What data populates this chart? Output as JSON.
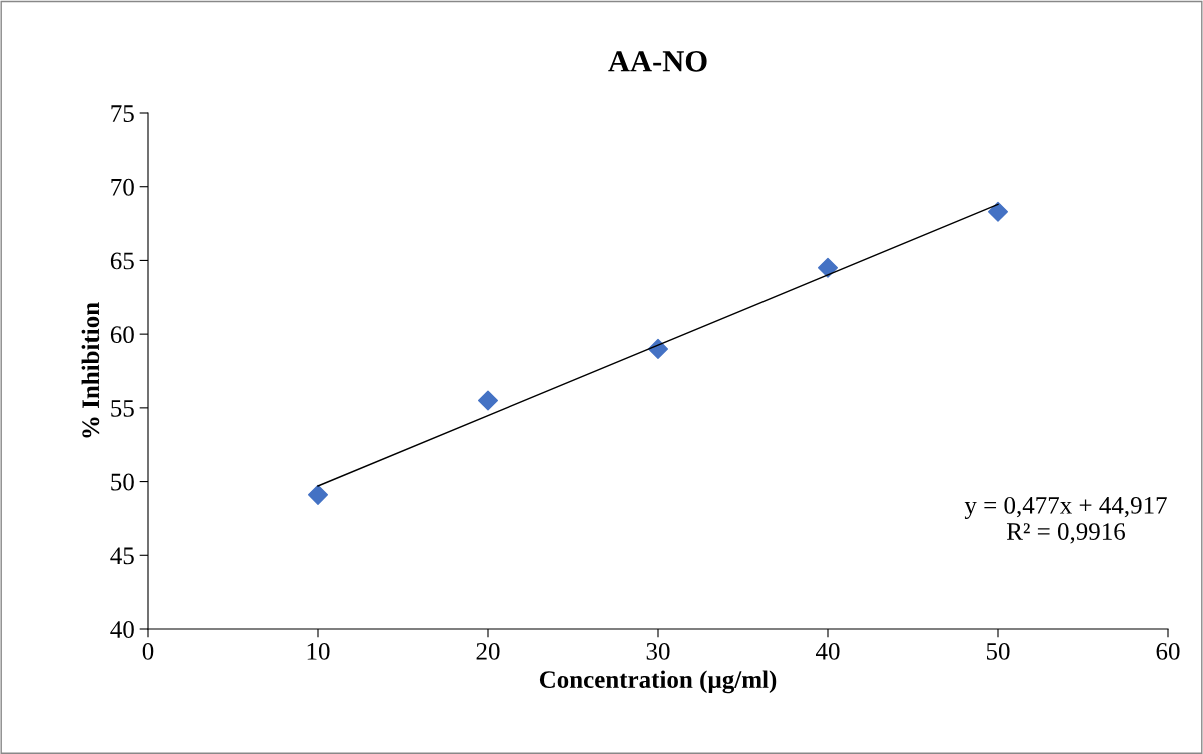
{
  "chart_data": {
    "type": "scatter",
    "title": "AA-NO",
    "xlabel": "Concentration (µg/ml)",
    "ylabel": "% Inhibition",
    "series": [
      {
        "color": "#4472c4",
        "marker": "diamond",
        "x": [
          10,
          20,
          30,
          40,
          50
        ],
        "values": [
          49.1,
          55.5,
          59.0,
          64.5,
          68.3
        ]
      },
      {
        "type": "line",
        "color": "#000000",
        "marker": "none",
        "x": [
          10,
          50
        ],
        "values": [
          49.7,
          68.8
        ]
      }
    ],
    "annotations": [
      "y = 0,477x + 44,917\nR² = 0,9916"
    ],
    "xlim": [
      0,
      60
    ],
    "xticks": [
      0,
      10,
      20,
      30,
      40,
      50,
      60
    ],
    "ylim": [
      40,
      75
    ],
    "yticks": [
      40,
      45,
      50,
      55,
      60,
      65,
      70,
      75
    ],
    "grid": false,
    "legend": false
  }
}
